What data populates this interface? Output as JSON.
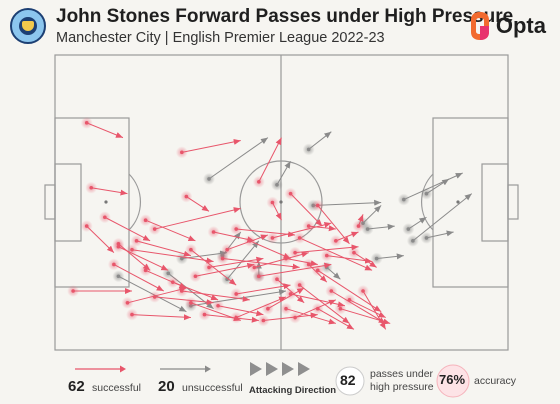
{
  "header": {
    "title": "John Stones Forward Passes under High Pressure",
    "subtitle": "Manchester City | English Premier League 2022-23",
    "brand": "Opta"
  },
  "colors": {
    "successful": "#e8566b",
    "unsuccessful": "#8a8a8a",
    "pitch_line": "#9a9a9a",
    "opta_orange": "#f26a2e",
    "opta_pink": "#e8336d"
  },
  "chart_data": {
    "type": "scatter",
    "x_range": [
      0,
      100
    ],
    "y_range": [
      0,
      100
    ],
    "attacking_direction": "left-to-right",
    "passes_successful": [
      [
        7,
        77,
        15,
        72
      ],
      [
        8,
        55,
        16,
        53
      ],
      [
        28,
        67,
        41,
        71
      ],
      [
        29,
        52,
        34,
        47
      ],
      [
        22,
        41,
        41,
        48
      ],
      [
        14,
        35,
        25,
        27
      ],
      [
        30,
        34,
        40,
        22
      ],
      [
        18,
        37,
        30,
        32
      ],
      [
        17,
        34,
        35,
        30
      ],
      [
        38,
        34,
        47,
        39
      ],
      [
        45,
        57,
        50,
        72
      ],
      [
        48,
        50,
        50,
        44
      ],
      [
        52,
        53,
        59,
        42
      ],
      [
        48,
        38,
        61,
        43
      ],
      [
        53,
        33,
        67,
        35
      ],
      [
        44,
        28,
        56,
        33
      ],
      [
        58,
        49,
        65,
        36
      ],
      [
        56,
        42,
        62,
        41
      ],
      [
        51,
        31,
        58,
        29
      ],
      [
        43,
        37,
        52,
        31
      ],
      [
        40,
        41,
        53,
        39
      ],
      [
        35,
        40,
        44,
        37
      ],
      [
        20,
        44,
        31,
        37
      ],
      [
        34,
        28,
        46,
        31
      ],
      [
        54,
        38,
        70,
        27
      ],
      [
        45,
        25,
        61,
        29
      ],
      [
        13,
        29,
        24,
        20
      ],
      [
        14,
        36,
        21,
        27
      ],
      [
        11,
        45,
        21,
        37
      ],
      [
        16,
        16,
        29,
        21
      ],
      [
        17,
        12,
        30,
        11
      ],
      [
        22,
        18,
        35,
        16
      ],
      [
        26,
        23,
        36,
        17
      ],
      [
        28,
        20,
        43,
        17
      ],
      [
        30,
        16,
        41,
        10
      ],
      [
        36,
        15,
        46,
        12
      ],
      [
        33,
        12,
        45,
        10
      ],
      [
        40,
        11,
        51,
        18
      ],
      [
        46,
        10,
        58,
        12
      ],
      [
        47,
        14,
        55,
        21
      ],
      [
        51,
        14,
        62,
        9
      ],
      [
        52,
        19,
        64,
        15
      ],
      [
        54,
        22,
        65,
        9
      ],
      [
        58,
        27,
        72,
        13
      ],
      [
        61,
        20,
        73,
        9
      ],
      [
        63,
        14,
        74,
        9
      ],
      [
        65,
        17,
        73,
        11
      ],
      [
        68,
        20,
        73,
        7
      ],
      [
        58,
        14,
        66,
        7
      ],
      [
        53,
        11,
        62,
        17
      ],
      [
        49,
        24,
        55,
        16
      ],
      [
        40,
        19,
        52,
        22
      ],
      [
        7,
        42,
        13,
        33
      ],
      [
        4,
        20,
        17,
        20
      ],
      [
        56,
        29,
        60,
        23
      ],
      [
        60,
        32,
        70,
        30
      ],
      [
        66,
        33,
        71,
        28
      ],
      [
        62,
        37,
        67,
        40
      ],
      [
        67,
        42,
        68,
        46
      ],
      [
        31,
        25,
        44,
        29
      ],
      [
        37,
        31,
        54,
        28
      ],
      [
        20,
        27,
        29,
        21
      ]
    ],
    "passes_unsuccessful": [
      [
        34,
        58,
        47,
        72
      ],
      [
        56,
        68,
        61,
        74
      ],
      [
        68,
        43,
        72,
        49
      ],
      [
        77,
        51,
        90,
        60
      ],
      [
        78,
        41,
        82,
        45
      ],
      [
        79,
        37,
        92,
        53
      ],
      [
        82,
        53,
        87,
        58
      ],
      [
        82,
        38,
        88,
        40
      ],
      [
        14,
        25,
        29,
        13
      ],
      [
        25,
        26,
        35,
        14
      ],
      [
        30,
        15,
        51,
        20
      ],
      [
        37,
        32,
        41,
        40
      ],
      [
        38,
        24,
        45,
        37
      ],
      [
        45,
        25,
        45,
        30
      ],
      [
        57,
        49,
        72,
        50
      ],
      [
        60,
        28,
        63,
        24
      ],
      [
        69,
        41,
        75,
        42
      ],
      [
        71,
        31,
        77,
        32
      ],
      [
        49,
        56,
        52,
        64
      ],
      [
        28,
        31,
        38,
        33
      ]
    ]
  },
  "legend": {
    "successful_count": "62",
    "successful_label": "successful",
    "unsuccessful_count": "20",
    "unsuccessful_label": "unsuccessful",
    "direction_label": "Attacking Direction",
    "passes_count": "82",
    "passes_label_1": "passes under",
    "passes_label_2": "high pressure",
    "accuracy_value": "76%",
    "accuracy_label": "accuracy"
  }
}
